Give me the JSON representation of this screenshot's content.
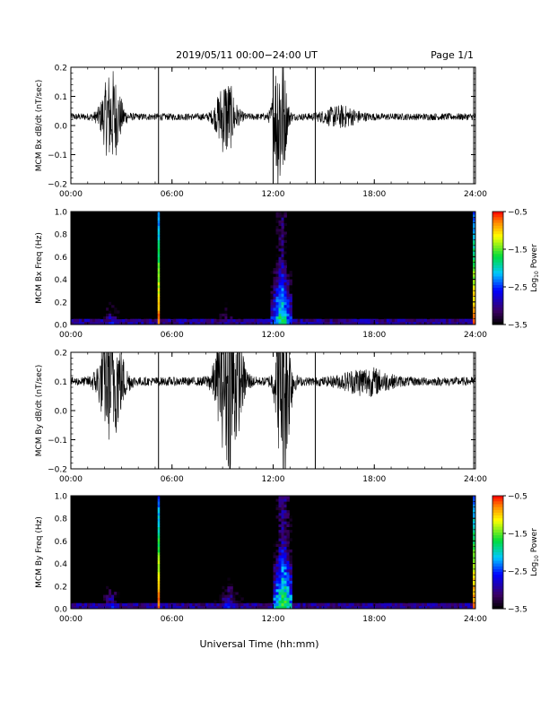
{
  "header": {
    "title": "2019/05/11  00:00−24:00 UT",
    "page": "Page 1/1"
  },
  "footer": {
    "xlabel": "Universal Time (hh:mm)"
  },
  "colors": {
    "background": "#ffffff",
    "panel_fill": "#000000",
    "trace": "#000000"
  },
  "chart_data": [
    {
      "type": "line",
      "series_name": "Bx",
      "ylabel": "MCM Bx dB/dt (nT/sec)",
      "ylim": [
        -0.2,
        0.2
      ],
      "yticks": [
        "0.2",
        "0.1",
        "0.0",
        "−0.1",
        "−0.2"
      ],
      "yticks_values": [
        0.2,
        0.1,
        0.0,
        -0.1,
        -0.2
      ],
      "xlim": [
        0,
        24
      ],
      "xticks": [
        "00:00",
        "06:00",
        "12:00",
        "18:00",
        "24:00"
      ],
      "xticks_values": [
        0,
        6,
        12,
        18,
        24
      ],
      "baseline": 0.03,
      "noise": 0.012,
      "events": [
        {
          "t": 2.4,
          "w": 0.8,
          "amp": 0.16
        },
        {
          "t": 9.2,
          "w": 0.8,
          "amp": 0.13
        },
        {
          "t": 12.4,
          "w": 0.5,
          "amp": 0.3
        },
        {
          "t": 16.0,
          "w": 1.5,
          "amp": 0.03
        }
      ],
      "vlines": [
        5.2,
        12.0,
        14.5,
        23.9
      ]
    },
    {
      "type": "heatmap",
      "series_name": "Bx",
      "ylabel": "MCM Bx Freq (Hz)",
      "ylim": [
        0,
        1.0
      ],
      "yticks": [
        "1.0",
        "0.8",
        "0.6",
        "0.4",
        "0.2",
        "0.0"
      ],
      "yticks_values": [
        1.0,
        0.8,
        0.6,
        0.4,
        0.2,
        0.0
      ],
      "xlim": [
        0,
        24
      ],
      "xticks": [
        "00:00",
        "06:00",
        "12:00",
        "18:00",
        "24:00"
      ],
      "xticks_values": [
        0,
        6,
        12,
        18,
        24
      ],
      "colorbar": {
        "label": "Log10 Power",
        "label_main": "Log",
        "label_sub": "10",
        "label_rest": " Power",
        "ticks": [
          "−0.5",
          "−1.5",
          "−2.5",
          "−3.5"
        ],
        "ticks_values": [
          -0.5,
          -1.5,
          -2.5,
          -3.5
        ],
        "range": [
          -3.5,
          -0.5
        ]
      },
      "events": [
        {
          "t": 2.4,
          "w": 0.8,
          "power": -2.6,
          "fmax": 0.3
        },
        {
          "t": 9.2,
          "w": 0.9,
          "power": -2.8,
          "fmax": 0.3
        },
        {
          "t": 12.5,
          "w": 0.6,
          "power": -1.6,
          "fmax": 0.6
        },
        {
          "t": 18.5,
          "w": 3.0,
          "power": -3.2,
          "fmax": 0.15
        }
      ],
      "vlines": [
        5.2,
        23.9
      ]
    },
    {
      "type": "line",
      "series_name": "By",
      "ylabel": "MCM By dB/dt (nT/sec)",
      "ylim": [
        -0.2,
        0.2
      ],
      "yticks": [
        "0.2",
        "0.1",
        "0.0",
        "−0.1",
        "−0.2"
      ],
      "yticks_values": [
        0.2,
        0.1,
        0.0,
        -0.1,
        -0.2
      ],
      "xlim": [
        0,
        24
      ],
      "xticks": [
        "00:00",
        "06:00",
        "12:00",
        "18:00",
        "24:00"
      ],
      "xticks_values": [
        0,
        6,
        12,
        18,
        24
      ],
      "baseline": 0.1,
      "noise": 0.015,
      "events": [
        {
          "t": 2.4,
          "w": 1.0,
          "amp": 0.2
        },
        {
          "t": 9.4,
          "w": 1.0,
          "amp": 0.3
        },
        {
          "t": 12.6,
          "w": 0.6,
          "amp": 0.35
        },
        {
          "t": 17.5,
          "w": 2.0,
          "amp": 0.04
        }
      ],
      "vlines": [
        5.2,
        14.5,
        23.9
      ]
    },
    {
      "type": "heatmap",
      "series_name": "By",
      "ylabel": "MCM By Freq (Hz)",
      "ylim": [
        0,
        1.0
      ],
      "yticks": [
        "1.0",
        "0.8",
        "0.6",
        "0.4",
        "0.2",
        "0.0"
      ],
      "yticks_values": [
        1.0,
        0.8,
        0.6,
        0.4,
        0.2,
        0.0
      ],
      "xlim": [
        0,
        24
      ],
      "xticks": [
        "00:00",
        "06:00",
        "12:00",
        "18:00",
        "24:00"
      ],
      "xticks_values": [
        0,
        6,
        12,
        18,
        24
      ],
      "colorbar": {
        "label": "Log10 Power",
        "label_main": "Log",
        "label_sub": "10",
        "label_rest": " Power",
        "ticks": [
          "−0.5",
          "−1.5",
          "−2.5",
          "−3.5"
        ],
        "ticks_values": [
          -0.5,
          -1.5,
          -2.5,
          -3.5
        ],
        "range": [
          -3.5,
          -0.5
        ]
      },
      "events": [
        {
          "t": 2.4,
          "w": 0.9,
          "power": -2.6,
          "fmax": 0.35
        },
        {
          "t": 9.4,
          "w": 1.0,
          "power": -2.5,
          "fmax": 0.35
        },
        {
          "t": 12.6,
          "w": 0.6,
          "power": -1.4,
          "fmax": 0.6
        },
        {
          "t": 18.5,
          "w": 3.0,
          "power": -3.1,
          "fmax": 0.15
        }
      ],
      "vlines": [
        5.2,
        23.9
      ]
    }
  ]
}
